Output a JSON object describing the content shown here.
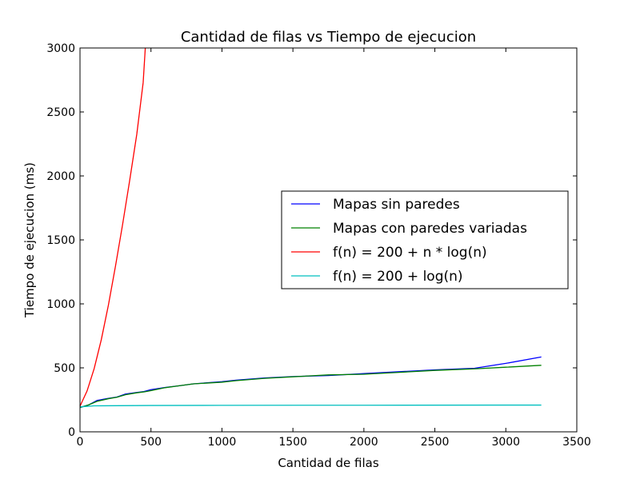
{
  "chart_data": {
    "type": "line",
    "title": "Cantidad de filas vs Tiempo de ejecucion",
    "xlabel": "Cantidad de filas",
    "ylabel": "Tiempo de ejecucion (ms)",
    "xlim": [
      0,
      3500
    ],
    "ylim": [
      0,
      3000
    ],
    "xticks": [
      "0",
      "500",
      "1000",
      "1500",
      "2000",
      "2500",
      "3000",
      "3500"
    ],
    "yticks": [
      "0",
      "500",
      "1000",
      "1500",
      "2000",
      "2500",
      "3000"
    ],
    "grid": false,
    "legend_position": "center-right",
    "series": [
      {
        "name": "Mapas sin paredes",
        "color": "#0000ff",
        "points": [
          [
            0,
            190
          ],
          [
            60,
            210
          ],
          [
            120,
            245
          ],
          [
            200,
            262
          ],
          [
            260,
            272
          ],
          [
            320,
            295
          ],
          [
            400,
            308
          ],
          [
            450,
            315
          ],
          [
            500,
            330
          ],
          [
            600,
            347
          ],
          [
            700,
            360
          ],
          [
            800,
            375
          ],
          [
            1000,
            392
          ],
          [
            1100,
            404
          ],
          [
            1300,
            421
          ],
          [
            1500,
            432
          ],
          [
            1750,
            440
          ],
          [
            2000,
            455
          ],
          [
            2250,
            470
          ],
          [
            2500,
            484
          ],
          [
            2780,
            497
          ],
          [
            3000,
            535
          ],
          [
            3250,
            585
          ]
        ]
      },
      {
        "name": "Mapas con paredes variadas",
        "color": "#008000",
        "points": [
          [
            0,
            190
          ],
          [
            60,
            210
          ],
          [
            120,
            238
          ],
          [
            200,
            259
          ],
          [
            260,
            270
          ],
          [
            320,
            290
          ],
          [
            400,
            305
          ],
          [
            450,
            312
          ],
          [
            500,
            322
          ],
          [
            600,
            345
          ],
          [
            700,
            360
          ],
          [
            800,
            375
          ],
          [
            1000,
            388
          ],
          [
            1100,
            400
          ],
          [
            1300,
            418
          ],
          [
            1500,
            430
          ],
          [
            1750,
            445
          ],
          [
            2000,
            450
          ],
          [
            2250,
            465
          ],
          [
            2500,
            480
          ],
          [
            2780,
            492
          ],
          [
            3000,
            505
          ],
          [
            3250,
            520
          ]
        ]
      },
      {
        "name": "f(n) = 200 + n * log(n)",
        "color": "#ff0000",
        "points": [
          [
            0,
            200
          ],
          [
            25,
            260
          ],
          [
            50,
            320
          ],
          [
            100,
            495
          ],
          [
            150,
            720
          ],
          [
            200,
            990
          ],
          [
            250,
            1295
          ],
          [
            300,
            1620
          ],
          [
            350,
            1965
          ],
          [
            400,
            2325
          ],
          [
            445,
            2730
          ],
          [
            460,
            3000
          ]
        ]
      },
      {
        "name": "f(n) = 200 + log(n)",
        "color": "#00bfbf",
        "points": [
          [
            0,
            195
          ],
          [
            100,
            203
          ],
          [
            500,
            206
          ],
          [
            1000,
            207
          ],
          [
            2000,
            208
          ],
          [
            3000,
            209
          ],
          [
            3250,
            209
          ]
        ]
      }
    ]
  }
}
